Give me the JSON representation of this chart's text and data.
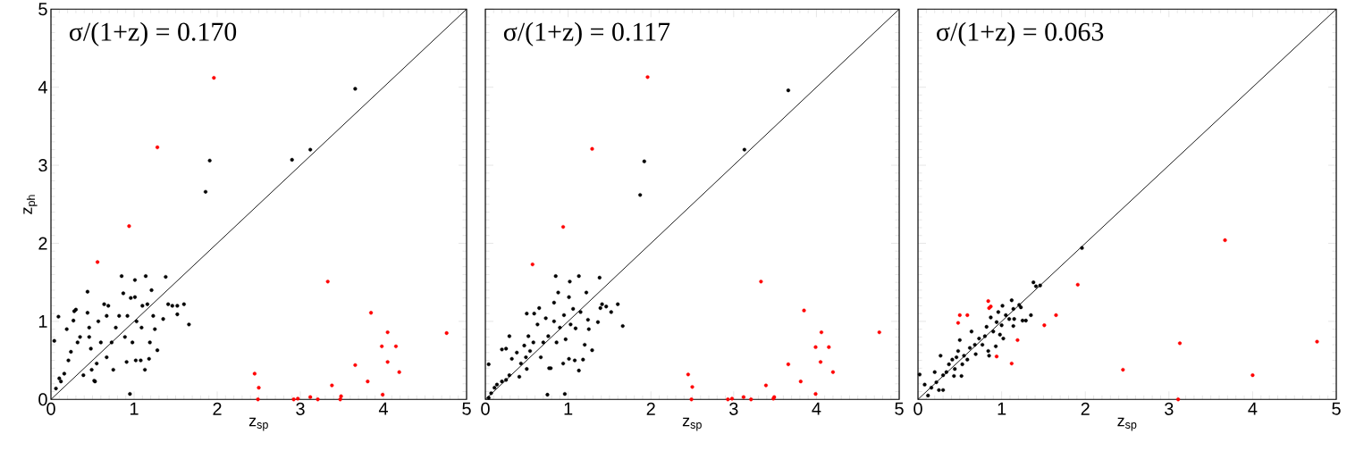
{
  "chart_data": [
    {
      "type": "scatter",
      "xlabel": "z$_{sp}$",
      "ylabel": "z$_{ph}$",
      "xlim": [
        0,
        5
      ],
      "ylim": [
        0,
        5
      ],
      "xticks": [
        0,
        1,
        2,
        3,
        4,
        5
      ],
      "yticks": [
        0,
        1,
        2,
        3,
        4,
        5
      ],
      "annotations": [
        "σ/(1+z) = 0.170"
      ],
      "series": [
        {
          "color": "#000000",
          "marker": "circle",
          "x": [
            0.04,
            0.09,
            0.06,
            0.1,
            0.12,
            0.16,
            0.19,
            0.28,
            0.3,
            0.27,
            0.21,
            0.24,
            0.32,
            0.35,
            0.39,
            0.44,
            0.44,
            0.46,
            0.48,
            0.49,
            0.52,
            0.55,
            0.57,
            0.6,
            0.64,
            0.69,
            0.67,
            0.73,
            0.75,
            0.78,
            0.82,
            0.85,
            0.87,
            0.89,
            0.91,
            0.92,
            0.96,
            0.98,
            1.01,
            1.01,
            1.03,
            1.02,
            1.08,
            1.09,
            1.14,
            1.13,
            1.18,
            1.19,
            1.21,
            1.23,
            1.25,
            1.28,
            1.35,
            1.38,
            1.41,
            1.46,
            1.52,
            1.52,
            1.6,
            1.66,
            1.1,
            1.16,
            0.53,
            0.46,
            0.67,
            3.66,
            3.12,
            2.9,
            1.91,
            1.86,
            0.95
          ],
          "values": [
            0.75,
            1.06,
            0.14,
            0.27,
            0.23,
            0.33,
            0.9,
            1.13,
            1.15,
            1.01,
            0.5,
            0.61,
            0.73,
            0.8,
            0.31,
            1.38,
            1.11,
            0.92,
            0.65,
            0.38,
            0.24,
            0.46,
            1.0,
            0.73,
            1.22,
            1.2,
            0.54,
            0.73,
            0.38,
            0.92,
            1.07,
            1.58,
            1.36,
            0.8,
            0.48,
            1.07,
            1.3,
            0.73,
            1.53,
            1.31,
            1.0,
            0.5,
            0.5,
            0.92,
            1.58,
            0.38,
            0.52,
            0.73,
            1.4,
            1.07,
            0.9,
            0.63,
            1.03,
            1.57,
            1.22,
            1.2,
            1.09,
            1.2,
            1.22,
            0.96,
            1.2,
            1.22,
            0.23,
            0.8,
            1.07,
            3.98,
            3.2,
            3.07,
            3.06,
            2.66,
            0.07
          ]
        },
        {
          "color": "#ff0000",
          "marker": "circle",
          "x": [
            1.96,
            1.28,
            0.94,
            0.56,
            3.33,
            3.85,
            4.05,
            4.76,
            3.98,
            4.15,
            3.66,
            4.05,
            2.45,
            4.19,
            3.81,
            2.5,
            3.38,
            3.99,
            3.49,
            3.12,
            2.49,
            2.92,
            2.97,
            3.21,
            3.48
          ],
          "values": [
            4.12,
            3.23,
            2.22,
            1.76,
            1.51,
            1.11,
            0.86,
            0.85,
            0.68,
            0.68,
            0.44,
            0.48,
            0.33,
            0.35,
            0.23,
            0.15,
            0.18,
            0.06,
            0.04,
            0.03,
            0.0,
            0.0,
            0.01,
            0.0,
            0.0
          ]
        },
        {
          "type": "line",
          "color": "#000000",
          "x": [
            0,
            5
          ],
          "values": [
            0,
            5
          ]
        }
      ]
    },
    {
      "type": "scatter",
      "xlabel": "z$_{sp}$",
      "xlim": [
        0,
        5
      ],
      "ylim": [
        0,
        5
      ],
      "xticks": [
        0,
        1,
        2,
        3,
        4,
        5
      ],
      "yticks": [
        0,
        1,
        2,
        3,
        4,
        5
      ],
      "tick_labels": "x",
      "annotations": [
        "σ/(1+z) = 0.117"
      ],
      "series": [
        {
          "color": "#000000",
          "marker": "circle",
          "x": [
            0.04,
            0.07,
            0.11,
            0.14,
            0.2,
            0.25,
            0.29,
            0.04,
            0.2,
            0.25,
            0.29,
            0.32,
            0.38,
            0.41,
            0.43,
            0.47,
            0.49,
            0.5,
            0.5,
            0.52,
            0.54,
            0.58,
            0.59,
            0.63,
            0.65,
            0.67,
            0.7,
            0.73,
            0.76,
            0.77,
            0.79,
            0.83,
            0.83,
            0.85,
            0.88,
            0.86,
            0.9,
            0.94,
            0.95,
            0.97,
            1.01,
            1.02,
            1.03,
            1.01,
            1.06,
            1.08,
            1.09,
            1.13,
            1.13,
            1.15,
            1.18,
            1.2,
            1.22,
            1.24,
            1.25,
            1.29,
            1.36,
            1.38,
            1.39,
            1.41,
            1.46,
            1.52,
            1.6,
            1.66,
            3.66,
            3.13,
            1.92,
            1.87,
            0.75,
            0.96
          ],
          "values": [
            0.02,
            0.08,
            0.15,
            0.19,
            0.23,
            0.25,
            0.31,
            0.45,
            0.64,
            0.65,
            0.81,
            0.52,
            0.6,
            0.29,
            0.46,
            0.69,
            0.54,
            0.39,
            1.1,
            0.81,
            0.62,
            0.73,
            1.1,
            0.96,
            1.17,
            0.54,
            0.73,
            1.04,
            0.81,
            0.4,
            0.4,
            1.0,
            1.24,
            1.58,
            1.37,
            0.73,
            0.92,
            0.46,
            1.08,
            0.77,
            1.31,
            1.51,
            0.96,
            0.52,
            1.16,
            0.5,
            0.91,
            1.58,
            0.37,
            1.12,
            0.51,
            0.7,
            1.37,
            1.02,
            0.9,
            0.63,
            0.99,
            1.56,
            1.17,
            1.22,
            1.19,
            1.12,
            1.22,
            0.94,
            3.96,
            3.2,
            3.05,
            2.62,
            0.06,
            0.07
          ]
        },
        {
          "color": "#ff0000",
          "marker": "circle",
          "x": [
            1.96,
            1.29,
            0.94,
            0.57,
            3.33,
            3.85,
            4.06,
            4.76,
            3.99,
            4.15,
            3.66,
            4.05,
            2.45,
            4.2,
            3.81,
            2.5,
            3.39,
            3.99,
            3.49,
            3.12,
            2.49,
            2.93,
            2.98,
            3.21,
            3.48
          ],
          "values": [
            4.13,
            3.21,
            2.21,
            1.73,
            1.51,
            1.14,
            0.86,
            0.86,
            0.67,
            0.67,
            0.45,
            0.48,
            0.32,
            0.35,
            0.23,
            0.16,
            0.18,
            0.07,
            0.03,
            0.03,
            0.0,
            0.0,
            0.01,
            0.0,
            0.01
          ]
        },
        {
          "type": "line",
          "color": "#000000",
          "x": [
            0,
            5
          ],
          "values": [
            0,
            5
          ]
        }
      ]
    },
    {
      "type": "scatter",
      "xlabel": "z$_{sp}$",
      "xlim": [
        0,
        5
      ],
      "ylim": [
        0,
        5
      ],
      "xticks": [
        0,
        1,
        2,
        3,
        4,
        5
      ],
      "yticks": [
        0,
        1,
        2,
        3,
        4,
        5
      ],
      "tick_labels": "x",
      "annotations": [
        "σ/(1+z) = 0.063"
      ],
      "series": [
        {
          "color": "#000000",
          "marker": "circle",
          "x": [
            0.02,
            0.08,
            0.12,
            0.16,
            0.2,
            0.22,
            0.25,
            0.27,
            0.3,
            0.3,
            0.34,
            0.37,
            0.41,
            0.43,
            0.44,
            0.46,
            0.48,
            0.5,
            0.52,
            0.53,
            0.55,
            0.59,
            0.62,
            0.64,
            0.68,
            0.69,
            0.73,
            0.77,
            0.8,
            0.82,
            0.84,
            0.85,
            0.87,
            0.9,
            0.93,
            0.94,
            0.96,
            0.98,
            1.0,
            1.01,
            1.02,
            1.05,
            1.09,
            1.12,
            1.14,
            1.15,
            1.21,
            1.23,
            1.25,
            1.29,
            1.35,
            1.14,
            1.96,
            1.38,
            1.41,
            1.46
          ],
          "values": [
            0.32,
            0.19,
            0.05,
            0.15,
            0.35,
            0.22,
            0.12,
            0.56,
            0.31,
            0.12,
            0.35,
            0.45,
            0.51,
            0.3,
            0.39,
            0.54,
            0.62,
            0.76,
            0.3,
            0.45,
            0.56,
            0.51,
            0.66,
            0.87,
            0.7,
            0.58,
            0.78,
            0.7,
            0.81,
            0.93,
            0.62,
            0.56,
            1.05,
            0.87,
            0.68,
            0.99,
            1.12,
            0.83,
            0.95,
            1.2,
            0.78,
            1.08,
            1.03,
            1.27,
            0.94,
            1.03,
            1.21,
            1.18,
            1.01,
            1.01,
            1.08,
            1.16,
            1.94,
            1.5,
            1.45,
            1.46
          ]
        },
        {
          "color": "#ff0000",
          "marker": "circle",
          "x": [
            3.67,
            1.91,
            0.84,
            0.85,
            0.87,
            0.5,
            0.59,
            0.48,
            1.65,
            1.51,
            1.19,
            3.13,
            4.77,
            0.94,
            1.12,
            2.45,
            4.0,
            3.11
          ],
          "values": [
            2.04,
            1.47,
            1.26,
            1.17,
            1.19,
            1.08,
            1.08,
            0.98,
            1.08,
            0.95,
            0.76,
            0.72,
            0.74,
            0.55,
            0.46,
            0.38,
            0.31,
            0.0
          ]
        },
        {
          "type": "line",
          "color": "#000000",
          "x": [
            0,
            5
          ],
          "values": [
            0,
            5
          ]
        }
      ]
    }
  ]
}
